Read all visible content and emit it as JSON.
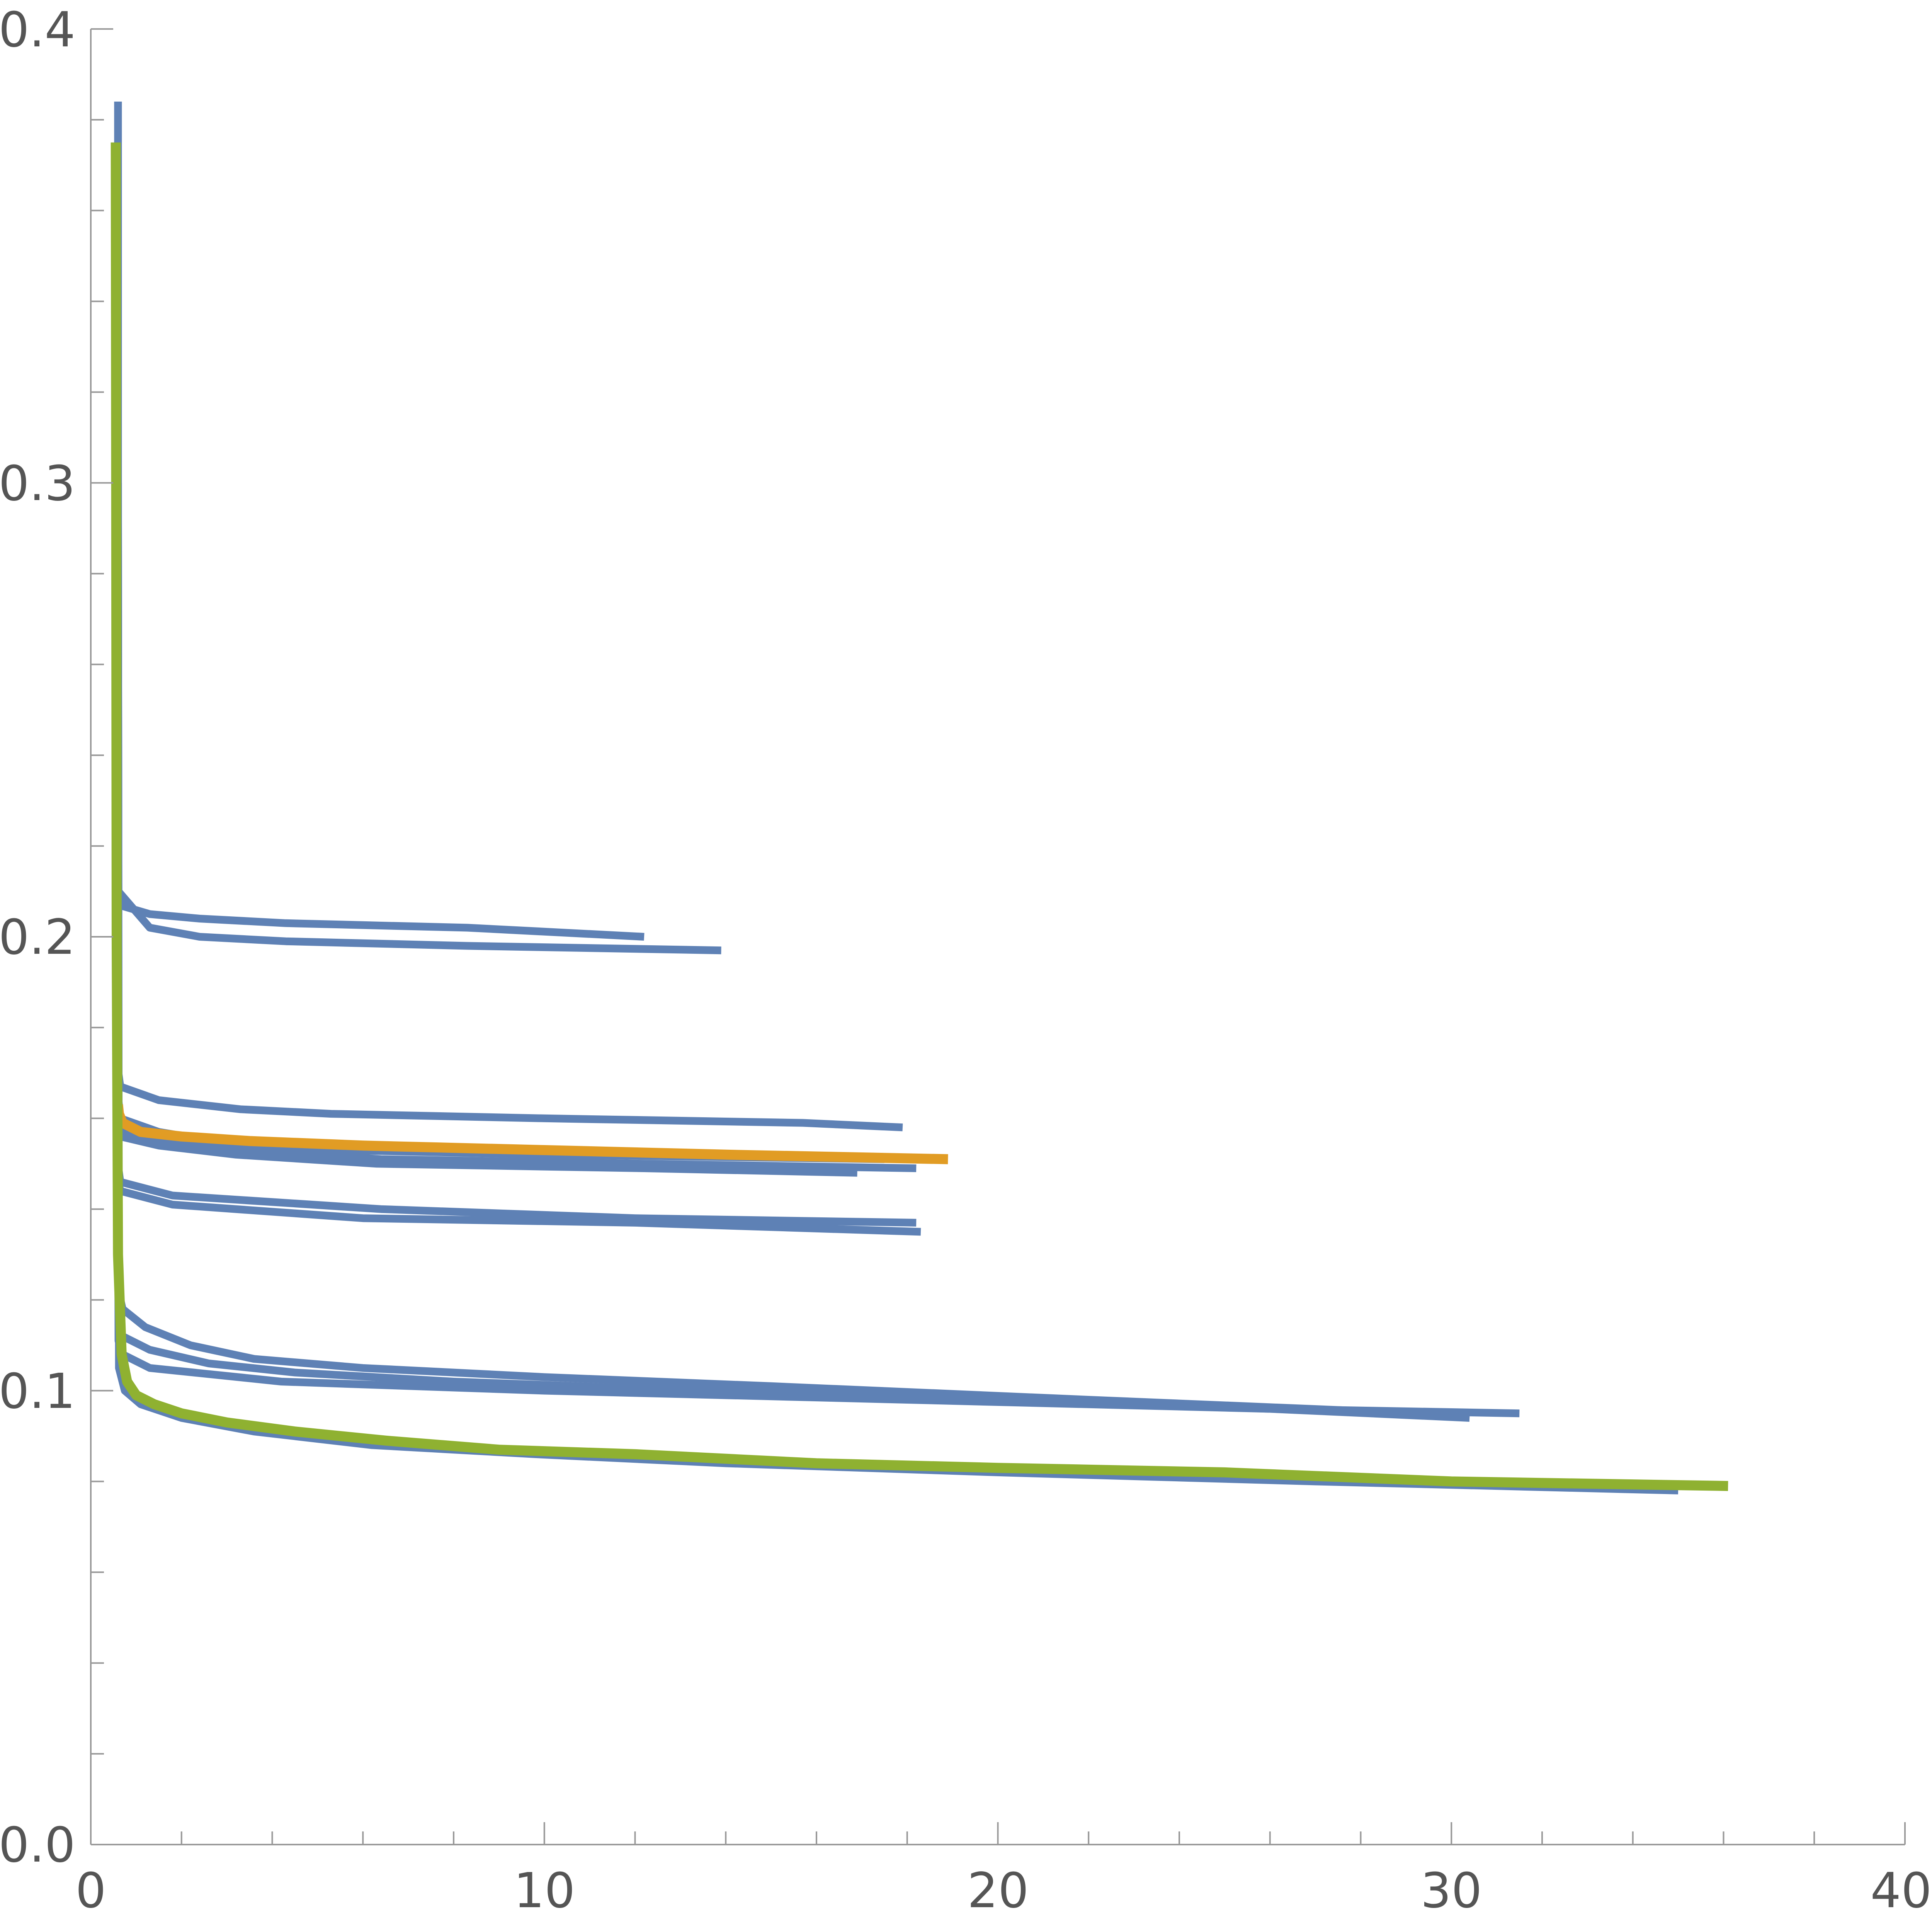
{
  "chart_data": {
    "type": "line",
    "title": "",
    "xlabel": "",
    "ylabel": "",
    "xlim": [
      0,
      40
    ],
    "ylim": [
      0,
      0.4
    ],
    "grid": false,
    "x_ticks": [
      "0",
      "10",
      "20",
      "30",
      "40"
    ],
    "y_ticks": [
      "0.0",
      "0.1",
      "0.2",
      "0.3",
      "0.4"
    ],
    "x_tick_values": [
      0,
      10,
      20,
      30,
      40
    ],
    "y_tick_values": [
      0,
      0.1,
      0.2,
      0.3,
      0.4
    ],
    "colors": {
      "blue": "#5e81b5",
      "orange": "#e19c24",
      "green": "#8fb131",
      "axis": "#999999",
      "label": "#555555"
    },
    "series": [
      {
        "color": "#5e81b5",
        "x": [
          0.6,
          0.6,
          0.61,
          1.3,
          2.4,
          4.3,
          8.3,
          13.9
        ],
        "y": [
          0.384,
          0.3,
          0.21,
          0.202,
          0.2,
          0.199,
          0.198,
          0.197
        ]
      },
      {
        "color": "#5e81b5",
        "x": [
          0.6,
          0.61,
          0.62,
          1.3,
          2.4,
          4.3,
          8.3,
          12.2
        ],
        "y": [
          0.3,
          0.21,
          0.207,
          0.205,
          0.204,
          0.203,
          0.202,
          0.2
        ]
      },
      {
        "color": "#5e81b5",
        "x": [
          0.6,
          0.61,
          0.65,
          1.5,
          3.3,
          5.3,
          10,
          15.7,
          17.9
        ],
        "y": [
          0.25,
          0.17,
          0.167,
          0.164,
          0.162,
          0.161,
          0.16,
          0.159,
          0.158
        ]
      },
      {
        "color": "#5e81b5",
        "x": [
          0.6,
          0.61,
          0.65,
          1.5,
          2.7,
          5.5,
          10.1,
          17.5
        ],
        "y": [
          0.25,
          0.164,
          0.16,
          0.157,
          0.155,
          0.153,
          0.152,
          0.151
        ]
      },
      {
        "color": "#5e81b5",
        "x": [
          0.6,
          0.61,
          0.65,
          1.5,
          3.3,
          6.4,
          12.2,
          18.2
        ],
        "y": [
          0.25,
          0.16,
          0.157,
          0.155,
          0.153,
          0.151,
          0.15,
          0.149
        ]
      },
      {
        "color": "#5e81b5",
        "x": [
          0.6,
          0.61,
          0.65,
          1.5,
          3.2,
          6.3,
          12.2,
          16.9
        ],
        "y": [
          0.25,
          0.158,
          0.156,
          0.154,
          0.152,
          0.15,
          0.149,
          0.148
        ]
      },
      {
        "color": "#5e81b5",
        "x": [
          0.6,
          0.61,
          0.65,
          1.8,
          6,
          12,
          18.3
        ],
        "y": [
          0.2,
          0.146,
          0.144,
          0.141,
          0.138,
          0.137,
          0.135
        ]
      },
      {
        "color": "#5e81b5",
        "x": [
          0.6,
          0.61,
          0.65,
          1.8,
          6.4,
          12,
          18.2
        ],
        "y": [
          0.2,
          0.149,
          0.146,
          0.143,
          0.14,
          0.138,
          0.137
        ]
      },
      {
        "color": "#5e81b5",
        "x": [
          0.6,
          0.61,
          0.7,
          1.2,
          2.2,
          3.6,
          6,
          10,
          15,
          22,
          29.3
        ],
        "y": [
          0.15,
          0.122,
          0.118,
          0.114,
          0.11,
          0.107,
          0.105,
          0.103,
          0.101,
          0.098,
          0.095
        ]
      },
      {
        "color": "#5e81b5",
        "x": [
          0.6,
          0.61,
          0.7,
          1.3,
          2.6,
          4.5,
          8,
          13.5,
          20,
          26,
          30.4
        ],
        "y": [
          0.15,
          0.115,
          0.112,
          0.109,
          0.106,
          0.104,
          0.102,
          0.1,
          0.098,
          0.096,
          0.094
        ]
      },
      {
        "color": "#5e81b5",
        "x": [
          0.6,
          0.61,
          0.7,
          1.3,
          4.2,
          10,
          18,
          26,
          31.5
        ],
        "y": [
          0.15,
          0.111,
          0.108,
          0.105,
          0.102,
          0.1,
          0.098,
          0.096,
          0.095
        ]
      },
      {
        "color": "#5e81b5",
        "x": [
          0.6,
          0.62,
          0.75,
          1.1,
          2,
          3.6,
          6.2,
          9.8,
          14,
          20,
          27,
          35
        ],
        "y": [
          0.3,
          0.105,
          0.1,
          0.097,
          0.094,
          0.091,
          0.088,
          0.086,
          0.084,
          0.082,
          0.08,
          0.078
        ]
      },
      {
        "color": "#e19c24",
        "x": [
          0.6,
          0.62,
          0.7,
          1.1,
          2,
          3.5,
          6,
          10,
          14,
          18.9
        ],
        "y": [
          0.163,
          0.161,
          0.159,
          0.157,
          0.156,
          0.155,
          0.154,
          0.153,
          0.152,
          0.151
        ]
      },
      {
        "color": "#8fb131",
        "x": [
          0.55,
          0.56,
          0.57,
          0.6,
          0.68,
          0.8,
          1,
          1.4,
          2,
          3,
          4.5,
          6.5,
          9,
          12,
          16,
          20,
          25,
          30,
          36.1
        ],
        "y": [
          0.375,
          0.3,
          0.2,
          0.13,
          0.108,
          0.102,
          0.099,
          0.097,
          0.095,
          0.093,
          0.091,
          0.089,
          0.087,
          0.086,
          0.084,
          0.083,
          0.082,
          0.08,
          0.079
        ]
      }
    ]
  }
}
